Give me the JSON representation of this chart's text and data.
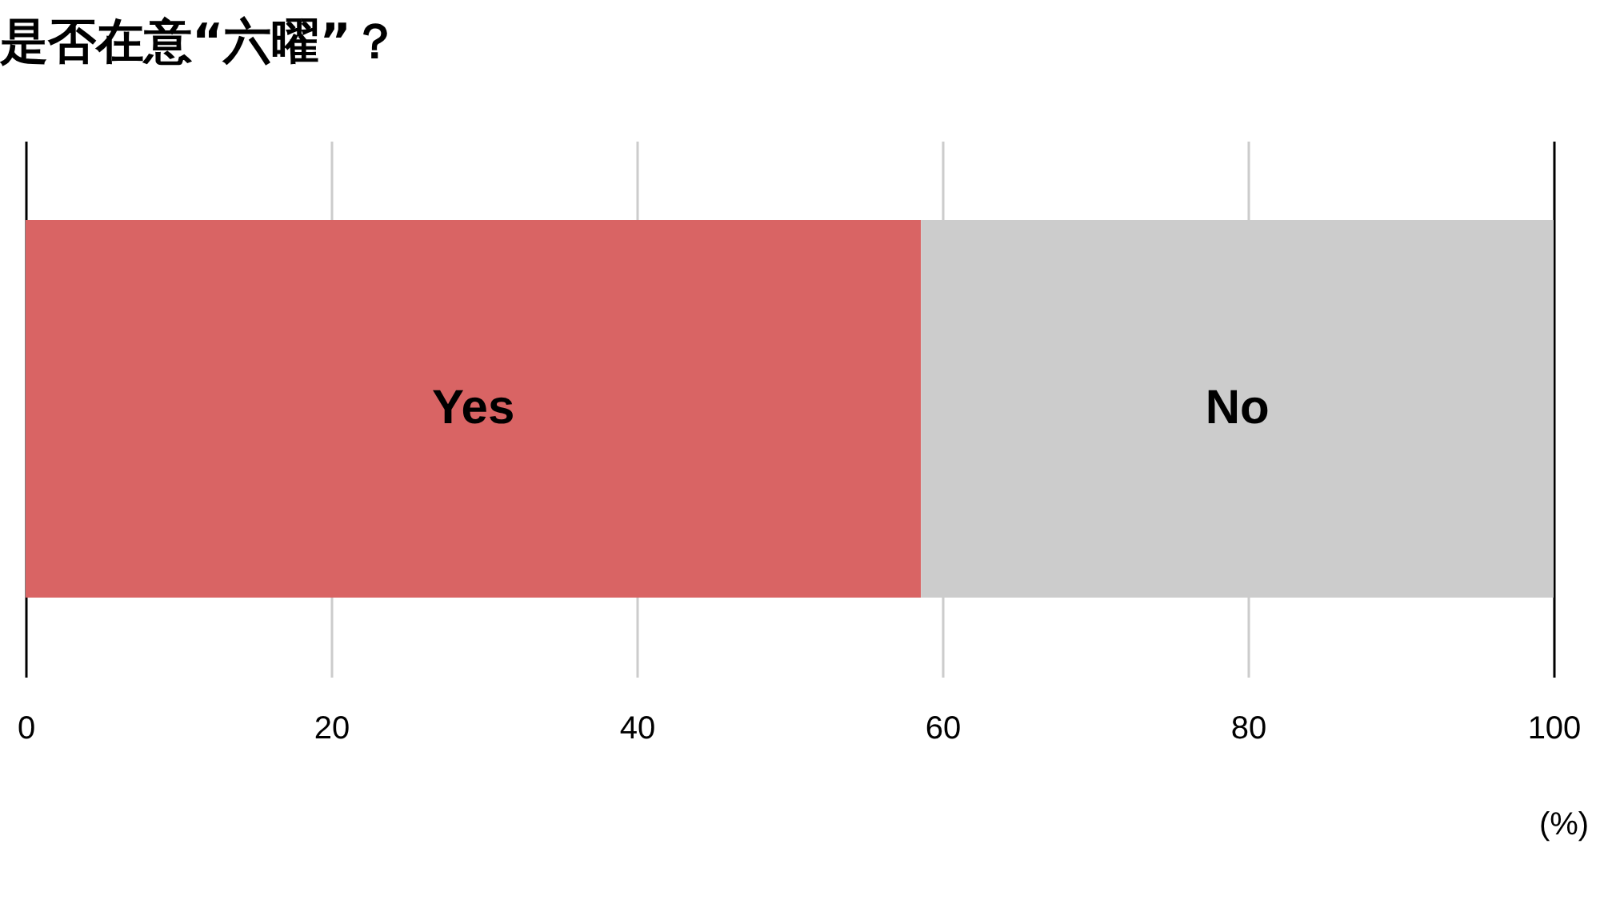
{
  "chart_data": {
    "type": "bar",
    "title": "是否在意“六曜”？",
    "orientation": "horizontal",
    "stacked": true,
    "categories": [
      null
    ],
    "series": [
      {
        "name": "Yes",
        "color": "#d96464",
        "values": [
          58.6
        ]
      },
      {
        "name": "No",
        "color": "#cccccc",
        "values": [
          41.4
        ]
      }
    ],
    "xlabel": "(%)",
    "xlim": [
      0,
      100
    ],
    "xticks": [
      0,
      20,
      40,
      60,
      80,
      100
    ],
    "grid": "x"
  }
}
